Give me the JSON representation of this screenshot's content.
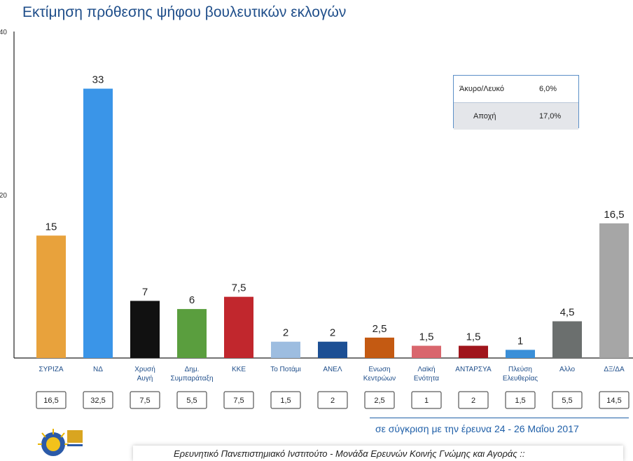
{
  "title": "Εκτίμηση πρόθεσης ψήφου βουλευτικών εκλογών",
  "chart_data": {
    "type": "bar",
    "categories": [
      [
        "ΣΥΡΙΖΑ"
      ],
      [
        "ΝΔ"
      ],
      [
        "Χρυσή",
        "Αυγή"
      ],
      [
        "Δημ.",
        "Συμπαράταξη"
      ],
      [
        "ΚΚΕ"
      ],
      [
        "Το Ποτάμι"
      ],
      [
        "ΑΝΕΛ"
      ],
      [
        "Ενωση",
        "Κεντρώων"
      ],
      [
        "Λαϊκή",
        "Ενότητα"
      ],
      [
        "ΑΝΤΑΡΣΥΑ"
      ],
      [
        "Πλεύση",
        "Ελευθερίας"
      ],
      [
        "Αλλο"
      ],
      [
        "ΔΞ/ΔΑ"
      ]
    ],
    "values": [
      15,
      33,
      7,
      6,
      7.5,
      2,
      2,
      2.5,
      1.5,
      1.5,
      1,
      4.5,
      16.5
    ],
    "value_labels": [
      "15",
      "33",
      "7",
      "6",
      "7,5",
      "2",
      "2",
      "2,5",
      "1,5",
      "1,5",
      "1",
      "4,5",
      "16,5"
    ],
    "colors": [
      "#e8a23c",
      "#3a95e8",
      "#111111",
      "#5a9e3e",
      "#c1272d",
      "#9dbde0",
      "#1c4f94",
      "#c45a12",
      "#d9666d",
      "#a0151c",
      "#3a8fd8",
      "#6b6f6e",
      "#a6a6a6"
    ],
    "comparison_values": [
      "16,5",
      "32,5",
      "7,5",
      "5,5",
      "7,5",
      "1,5",
      "2",
      "2,5",
      "1",
      "2",
      "1,5",
      "5,5",
      "14,5"
    ],
    "y_ticks": [
      "20",
      "40"
    ],
    "ylim": [
      0,
      40
    ],
    "grid": false
  },
  "info_box": {
    "rows": [
      {
        "label": "Άκυρο/Λευκό",
        "value": "6,0%"
      },
      {
        "label": "Αποχή",
        "value": "17,0%"
      }
    ]
  },
  "comparison_note": "σε σύγκριση με την έρευνα 24 - 26 Μαΐου 2017",
  "footer": "Ερευνητικό Πανεπιστημιακό Ινστιτούτο - Μονάδα Ερευνών Κοινής Γνώμης και Αγοράς ::"
}
